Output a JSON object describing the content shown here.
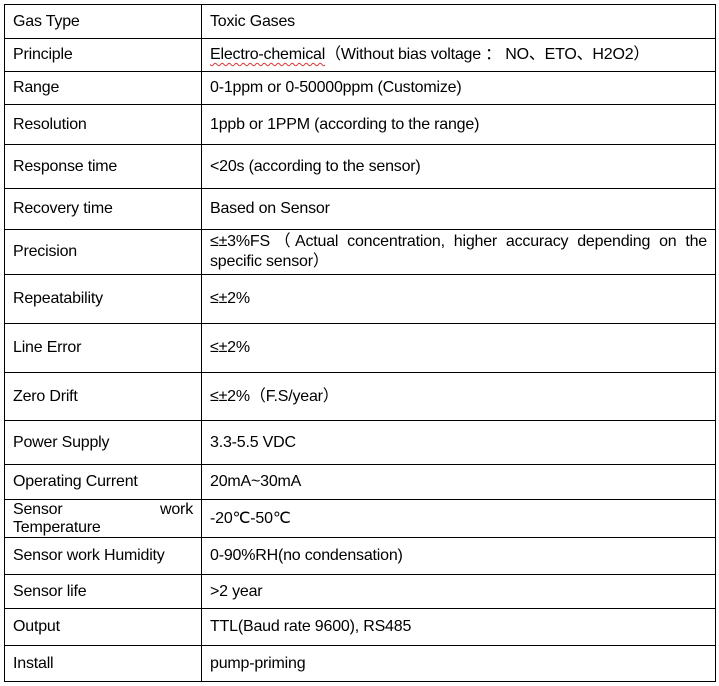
{
  "rows": [
    {
      "label": "Gas Type",
      "value": "Toxic Gases"
    },
    {
      "label": "Principle",
      "value_underlined": "Electro-chemical",
      "value": "（Without bias voltage ： NO、ETO、H2O2）"
    },
    {
      "label": "Range",
      "value": "0-1ppm or 0-50000ppm (Customize)"
    },
    {
      "label": "Resolution",
      "value": "1ppb or 1PPM (according to the range)"
    },
    {
      "label": "Response time",
      "value": "<20s (according to the sensor)"
    },
    {
      "label": "Recovery time",
      "value": "Based on Sensor"
    },
    {
      "label": "Precision",
      "value": "≤±3%FS（Actual concentration, higher accuracy depending on the specific sensor）"
    },
    {
      "label": "Repeatability",
      "value": "≤±2%"
    },
    {
      "label": "Line Error",
      "value": "≤±2%"
    },
    {
      "label": "Zero Drift",
      "value": "≤±2%（F.S/year）"
    },
    {
      "label": "Power Supply",
      "value": "3.3-5.5 VDC"
    },
    {
      "label": "Operating Current",
      "value": "20mA~30mA"
    },
    {
      "label_line1": "Sensor work",
      "label": "Temperature",
      "value": "-20℃-50℃"
    },
    {
      "label": "Sensor work Humidity",
      "value": "0-90%RH(no condensation)"
    },
    {
      "label": "Sensor life",
      "value": ">2 year"
    },
    {
      "label": "Output",
      "value": "TTL(Baud rate 9600), RS485"
    },
    {
      "label": "Install",
      "value": "pump-priming"
    }
  ]
}
